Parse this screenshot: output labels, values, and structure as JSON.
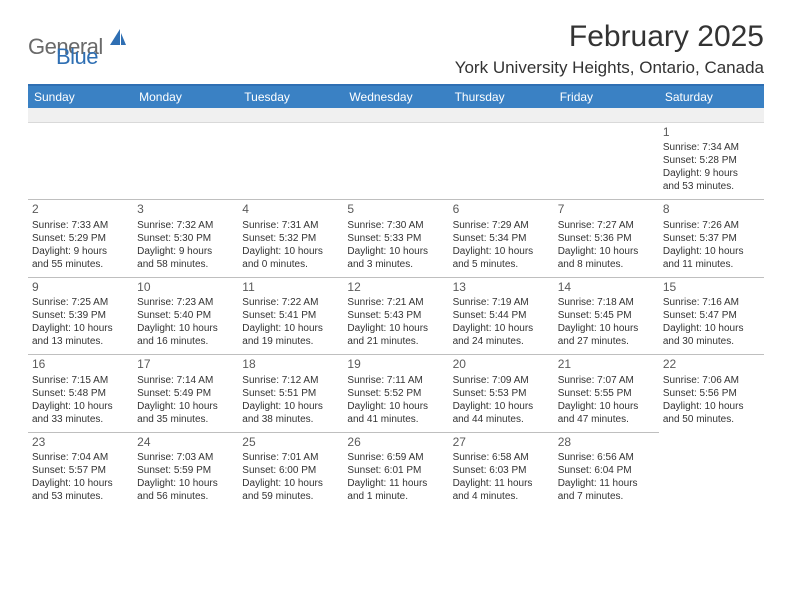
{
  "logo": {
    "part1": "General",
    "part2": "Blue"
  },
  "title": "February 2025",
  "location": "York University Heights, Ontario, Canada",
  "colors": {
    "header_blue": "#3a81c4",
    "divider_blue": "#2f6fb3",
    "logo_gray": "#6a6a6a",
    "blank_bg": "#f0f0f0",
    "cell_border": "#bfbfbf"
  },
  "day_headers": [
    "Sunday",
    "Monday",
    "Tuesday",
    "Wednesday",
    "Thursday",
    "Friday",
    "Saturday"
  ],
  "weeks": [
    [
      null,
      null,
      null,
      null,
      null,
      null,
      {
        "num": "1",
        "sunrise": "Sunrise: 7:34 AM",
        "sunset": "Sunset: 5:28 PM",
        "day1": "Daylight: 9 hours",
        "day2": "and 53 minutes."
      }
    ],
    [
      {
        "num": "2",
        "sunrise": "Sunrise: 7:33 AM",
        "sunset": "Sunset: 5:29 PM",
        "day1": "Daylight: 9 hours",
        "day2": "and 55 minutes."
      },
      {
        "num": "3",
        "sunrise": "Sunrise: 7:32 AM",
        "sunset": "Sunset: 5:30 PM",
        "day1": "Daylight: 9 hours",
        "day2": "and 58 minutes."
      },
      {
        "num": "4",
        "sunrise": "Sunrise: 7:31 AM",
        "sunset": "Sunset: 5:32 PM",
        "day1": "Daylight: 10 hours",
        "day2": "and 0 minutes."
      },
      {
        "num": "5",
        "sunrise": "Sunrise: 7:30 AM",
        "sunset": "Sunset: 5:33 PM",
        "day1": "Daylight: 10 hours",
        "day2": "and 3 minutes."
      },
      {
        "num": "6",
        "sunrise": "Sunrise: 7:29 AM",
        "sunset": "Sunset: 5:34 PM",
        "day1": "Daylight: 10 hours",
        "day2": "and 5 minutes."
      },
      {
        "num": "7",
        "sunrise": "Sunrise: 7:27 AM",
        "sunset": "Sunset: 5:36 PM",
        "day1": "Daylight: 10 hours",
        "day2": "and 8 minutes."
      },
      {
        "num": "8",
        "sunrise": "Sunrise: 7:26 AM",
        "sunset": "Sunset: 5:37 PM",
        "day1": "Daylight: 10 hours",
        "day2": "and 11 minutes."
      }
    ],
    [
      {
        "num": "9",
        "sunrise": "Sunrise: 7:25 AM",
        "sunset": "Sunset: 5:39 PM",
        "day1": "Daylight: 10 hours",
        "day2": "and 13 minutes."
      },
      {
        "num": "10",
        "sunrise": "Sunrise: 7:23 AM",
        "sunset": "Sunset: 5:40 PM",
        "day1": "Daylight: 10 hours",
        "day2": "and 16 minutes."
      },
      {
        "num": "11",
        "sunrise": "Sunrise: 7:22 AM",
        "sunset": "Sunset: 5:41 PM",
        "day1": "Daylight: 10 hours",
        "day2": "and 19 minutes."
      },
      {
        "num": "12",
        "sunrise": "Sunrise: 7:21 AM",
        "sunset": "Sunset: 5:43 PM",
        "day1": "Daylight: 10 hours",
        "day2": "and 21 minutes."
      },
      {
        "num": "13",
        "sunrise": "Sunrise: 7:19 AM",
        "sunset": "Sunset: 5:44 PM",
        "day1": "Daylight: 10 hours",
        "day2": "and 24 minutes."
      },
      {
        "num": "14",
        "sunrise": "Sunrise: 7:18 AM",
        "sunset": "Sunset: 5:45 PM",
        "day1": "Daylight: 10 hours",
        "day2": "and 27 minutes."
      },
      {
        "num": "15",
        "sunrise": "Sunrise: 7:16 AM",
        "sunset": "Sunset: 5:47 PM",
        "day1": "Daylight: 10 hours",
        "day2": "and 30 minutes."
      }
    ],
    [
      {
        "num": "16",
        "sunrise": "Sunrise: 7:15 AM",
        "sunset": "Sunset: 5:48 PM",
        "day1": "Daylight: 10 hours",
        "day2": "and 33 minutes."
      },
      {
        "num": "17",
        "sunrise": "Sunrise: 7:14 AM",
        "sunset": "Sunset: 5:49 PM",
        "day1": "Daylight: 10 hours",
        "day2": "and 35 minutes."
      },
      {
        "num": "18",
        "sunrise": "Sunrise: 7:12 AM",
        "sunset": "Sunset: 5:51 PM",
        "day1": "Daylight: 10 hours",
        "day2": "and 38 minutes."
      },
      {
        "num": "19",
        "sunrise": "Sunrise: 7:11 AM",
        "sunset": "Sunset: 5:52 PM",
        "day1": "Daylight: 10 hours",
        "day2": "and 41 minutes."
      },
      {
        "num": "20",
        "sunrise": "Sunrise: 7:09 AM",
        "sunset": "Sunset: 5:53 PM",
        "day1": "Daylight: 10 hours",
        "day2": "and 44 minutes."
      },
      {
        "num": "21",
        "sunrise": "Sunrise: 7:07 AM",
        "sunset": "Sunset: 5:55 PM",
        "day1": "Daylight: 10 hours",
        "day2": "and 47 minutes."
      },
      {
        "num": "22",
        "sunrise": "Sunrise: 7:06 AM",
        "sunset": "Sunset: 5:56 PM",
        "day1": "Daylight: 10 hours",
        "day2": "and 50 minutes."
      }
    ],
    [
      {
        "num": "23",
        "sunrise": "Sunrise: 7:04 AM",
        "sunset": "Sunset: 5:57 PM",
        "day1": "Daylight: 10 hours",
        "day2": "and 53 minutes."
      },
      {
        "num": "24",
        "sunrise": "Sunrise: 7:03 AM",
        "sunset": "Sunset: 5:59 PM",
        "day1": "Daylight: 10 hours",
        "day2": "and 56 minutes."
      },
      {
        "num": "25",
        "sunrise": "Sunrise: 7:01 AM",
        "sunset": "Sunset: 6:00 PM",
        "day1": "Daylight: 10 hours",
        "day2": "and 59 minutes."
      },
      {
        "num": "26",
        "sunrise": "Sunrise: 6:59 AM",
        "sunset": "Sunset: 6:01 PM",
        "day1": "Daylight: 11 hours",
        "day2": "and 1 minute."
      },
      {
        "num": "27",
        "sunrise": "Sunrise: 6:58 AM",
        "sunset": "Sunset: 6:03 PM",
        "day1": "Daylight: 11 hours",
        "day2": "and 4 minutes."
      },
      {
        "num": "28",
        "sunrise": "Sunrise: 6:56 AM",
        "sunset": "Sunset: 6:04 PM",
        "day1": "Daylight: 11 hours",
        "day2": "and 7 minutes."
      },
      null
    ]
  ]
}
